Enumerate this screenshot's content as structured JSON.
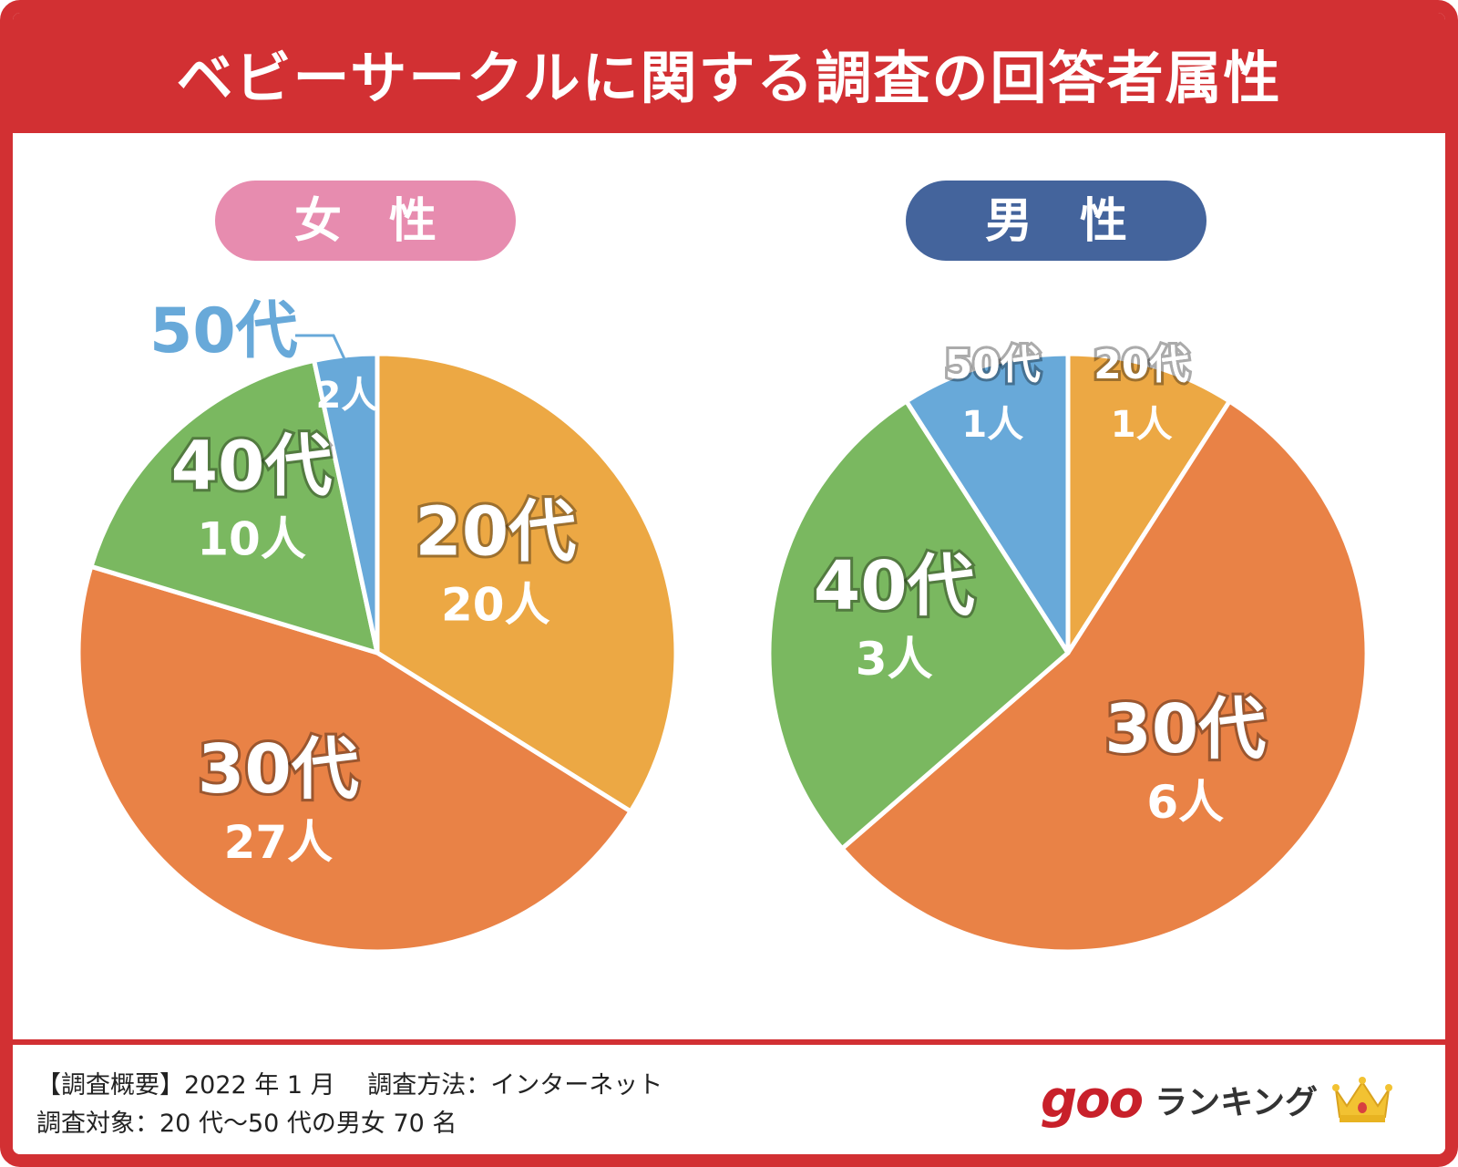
{
  "title": "ベビーサークルに関する調査の回答者属性",
  "colors": {
    "frame": "#d23033",
    "20s": "#eca844",
    "30s": "#e98246",
    "40s": "#7ab860",
    "50s": "#68a9d9",
    "female_pill": "#e78caf",
    "male_pill": "#44649c"
  },
  "chart_data": [
    {
      "type": "pie",
      "title": "女　性",
      "categories": [
        "20代",
        "30代",
        "40代",
        "50代"
      ],
      "values": [
        20,
        27,
        10,
        2
      ],
      "value_labels": [
        "20人",
        "27人",
        "10人",
        "2人"
      ],
      "unit": "人"
    },
    {
      "type": "pie",
      "title": "男　性",
      "categories": [
        "20代",
        "30代",
        "40代",
        "50代"
      ],
      "values": [
        1,
        6,
        3,
        1
      ],
      "value_labels": [
        "1人",
        "6人",
        "3人",
        "1人"
      ],
      "unit": "人"
    }
  ],
  "footer": {
    "line1": "【調査概要】2022 年 1 月　 調査方法：インターネット",
    "line2": "調査対象：20 代～50 代の男女 70 名",
    "brand_goo": "goo",
    "brand_ranking": "ランキング",
    "crown_icon": "crown-icon"
  }
}
